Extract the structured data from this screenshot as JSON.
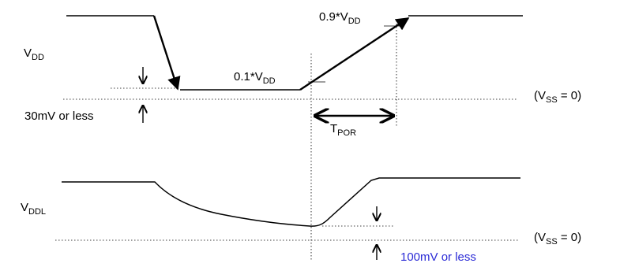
{
  "labels": {
    "vdd": {
      "main": "V",
      "sub": "DD"
    },
    "vddl": {
      "main": "V",
      "sub": "DDL"
    },
    "vss_top": {
      "open": "(V",
      "sub": "SS",
      "close": " = 0)"
    },
    "vss_bottom": {
      "open": "(V",
      "sub": "SS",
      "close": " = 0)"
    },
    "ten_percent": {
      "prefix": "0.1*V",
      "sub": "DD"
    },
    "ninety_percent": {
      "prefix": "0.9*V",
      "sub": "DD"
    },
    "tpor": {
      "main": "T",
      "sub": "POR"
    },
    "thirty_mv": "30mV or less",
    "hundred_mv": "100mV or less"
  },
  "colors": {
    "line": "#000000",
    "note_blue": "#2b2bd6"
  }
}
